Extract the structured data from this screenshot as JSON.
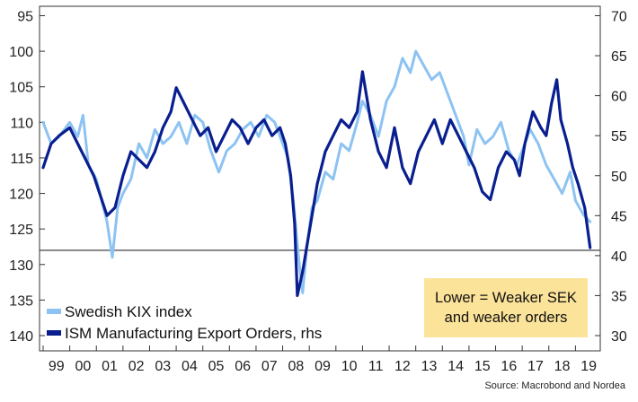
{
  "chart_data": {
    "type": "line",
    "title": "",
    "xlabel": "",
    "ylabel": "",
    "x_tick_labels": [
      "99",
      "00",
      "01",
      "02",
      "03",
      "04",
      "05",
      "06",
      "07",
      "08",
      "09",
      "10",
      "11",
      "12",
      "13",
      "14",
      "15",
      "16",
      "17",
      "18",
      "19"
    ],
    "y_left": {
      "ticks": [
        "95",
        "100",
        "105",
        "110",
        "115",
        "120",
        "125",
        "130",
        "135",
        "140"
      ],
      "range": [
        95,
        140
      ],
      "inverted": true
    },
    "y_right": {
      "ticks": [
        "70",
        "65",
        "60",
        "55",
        "50",
        "45",
        "40",
        "35",
        "30"
      ],
      "range": [
        30,
        70
      ]
    },
    "reference_line": {
      "axis": "left",
      "value": 128
    },
    "series": [
      {
        "name": "Swedish KIX index",
        "axis": "left",
        "color": "#8dc3f2",
        "points": [
          [
            1999.0,
            110
          ],
          [
            1999.3,
            113
          ],
          [
            1999.6,
            112
          ],
          [
            2000.0,
            110
          ],
          [
            2000.3,
            112
          ],
          [
            2000.5,
            109
          ],
          [
            2000.7,
            116
          ],
          [
            2001.0,
            118
          ],
          [
            2001.2,
            121
          ],
          [
            2001.4,
            124
          ],
          [
            2001.6,
            129
          ],
          [
            2001.8,
            122
          ],
          [
            2002.0,
            120
          ],
          [
            2002.3,
            118
          ],
          [
            2002.6,
            113
          ],
          [
            2002.9,
            115
          ],
          [
            2003.2,
            111
          ],
          [
            2003.5,
            113
          ],
          [
            2003.8,
            112
          ],
          [
            2004.1,
            110
          ],
          [
            2004.4,
            113
          ],
          [
            2004.7,
            109
          ],
          [
            2005.0,
            110
          ],
          [
            2005.3,
            114
          ],
          [
            2005.6,
            117
          ],
          [
            2005.9,
            114
          ],
          [
            2006.2,
            113
          ],
          [
            2006.5,
            111
          ],
          [
            2006.8,
            110
          ],
          [
            2007.1,
            112
          ],
          [
            2007.4,
            109
          ],
          [
            2007.7,
            110
          ],
          [
            2008.0,
            113
          ],
          [
            2008.2,
            115
          ],
          [
            2008.4,
            121
          ],
          [
            2008.6,
            129
          ],
          [
            2008.75,
            134
          ],
          [
            2008.9,
            128
          ],
          [
            2009.1,
            122
          ],
          [
            2009.3,
            121
          ],
          [
            2009.6,
            117
          ],
          [
            2009.9,
            118
          ],
          [
            2010.2,
            113
          ],
          [
            2010.5,
            114
          ],
          [
            2010.8,
            110
          ],
          [
            2011.0,
            107
          ],
          [
            2011.3,
            109
          ],
          [
            2011.6,
            112
          ],
          [
            2011.9,
            107
          ],
          [
            2012.2,
            105
          ],
          [
            2012.5,
            101
          ],
          [
            2012.8,
            103
          ],
          [
            2013.0,
            100
          ],
          [
            2013.3,
            102
          ],
          [
            2013.6,
            104
          ],
          [
            2013.9,
            103
          ],
          [
            2014.2,
            106
          ],
          [
            2014.5,
            109
          ],
          [
            2014.8,
            112
          ],
          [
            2015.0,
            116
          ],
          [
            2015.3,
            111
          ],
          [
            2015.6,
            113
          ],
          [
            2015.9,
            112
          ],
          [
            2016.2,
            110
          ],
          [
            2016.5,
            114
          ],
          [
            2016.8,
            116
          ],
          [
            2017.0,
            114
          ],
          [
            2017.3,
            111
          ],
          [
            2017.6,
            113
          ],
          [
            2017.9,
            116
          ],
          [
            2018.2,
            118
          ],
          [
            2018.5,
            120
          ],
          [
            2018.8,
            117
          ],
          [
            2019.0,
            121
          ],
          [
            2019.3,
            123
          ],
          [
            2019.55,
            124
          ]
        ]
      },
      {
        "name": "ISM Manufacturing Export Orders, rhs",
        "axis": "right",
        "color": "#0a1f8f",
        "points": [
          [
            1999.0,
            51
          ],
          [
            1999.3,
            54
          ],
          [
            1999.6,
            55
          ],
          [
            2000.0,
            56
          ],
          [
            2000.3,
            54
          ],
          [
            2000.6,
            52
          ],
          [
            2000.9,
            50
          ],
          [
            2001.2,
            47
          ],
          [
            2001.4,
            45
          ],
          [
            2001.7,
            46
          ],
          [
            2002.0,
            50
          ],
          [
            2002.3,
            53
          ],
          [
            2002.6,
            52
          ],
          [
            2002.9,
            51
          ],
          [
            2003.2,
            53
          ],
          [
            2003.5,
            56
          ],
          [
            2003.8,
            58
          ],
          [
            2004.0,
            61
          ],
          [
            2004.3,
            59
          ],
          [
            2004.6,
            57
          ],
          [
            2004.9,
            55
          ],
          [
            2005.2,
            56
          ],
          [
            2005.5,
            53
          ],
          [
            2005.8,
            55
          ],
          [
            2006.1,
            57
          ],
          [
            2006.4,
            56
          ],
          [
            2006.7,
            54
          ],
          [
            2007.0,
            56
          ],
          [
            2007.3,
            57
          ],
          [
            2007.6,
            55
          ],
          [
            2007.9,
            56
          ],
          [
            2008.1,
            54
          ],
          [
            2008.3,
            50
          ],
          [
            2008.45,
            44
          ],
          [
            2008.55,
            35
          ],
          [
            2008.75,
            38
          ],
          [
            2008.9,
            41
          ],
          [
            2009.1,
            45
          ],
          [
            2009.3,
            49
          ],
          [
            2009.6,
            53
          ],
          [
            2009.9,
            55
          ],
          [
            2010.2,
            57
          ],
          [
            2010.5,
            56
          ],
          [
            2010.8,
            58
          ],
          [
            2011.0,
            63
          ],
          [
            2011.3,
            57
          ],
          [
            2011.6,
            53
          ],
          [
            2011.9,
            51
          ],
          [
            2012.2,
            56
          ],
          [
            2012.5,
            51
          ],
          [
            2012.8,
            49
          ],
          [
            2013.1,
            53
          ],
          [
            2013.4,
            55
          ],
          [
            2013.7,
            57
          ],
          [
            2014.0,
            54
          ],
          [
            2014.3,
            57
          ],
          [
            2014.6,
            55
          ],
          [
            2014.9,
            53
          ],
          [
            2015.2,
            51
          ],
          [
            2015.5,
            48
          ],
          [
            2015.8,
            47
          ],
          [
            2016.1,
            51
          ],
          [
            2016.4,
            53
          ],
          [
            2016.7,
            52
          ],
          [
            2016.9,
            50
          ],
          [
            2017.1,
            54
          ],
          [
            2017.4,
            58
          ],
          [
            2017.7,
            56
          ],
          [
            2017.9,
            55
          ],
          [
            2018.1,
            59
          ],
          [
            2018.3,
            62
          ],
          [
            2018.45,
            57
          ],
          [
            2018.7,
            54
          ],
          [
            2018.9,
            51
          ],
          [
            2019.1,
            49
          ],
          [
            2019.35,
            46
          ],
          [
            2019.55,
            41
          ]
        ]
      }
    ],
    "legend": [
      {
        "label": "Swedish KIX index",
        "color": "#8dc3f2"
      },
      {
        "label": "ISM Manufacturing Export Orders, rhs",
        "color": "#0a1f8f"
      }
    ],
    "legend_placement": "bottom-left",
    "grid": false,
    "annotation": {
      "line1": "Lower = Weaker SEK",
      "line2": "and weaker orders",
      "color": "#fce39a"
    },
    "source": "Source: Macrobond and Nordea"
  }
}
